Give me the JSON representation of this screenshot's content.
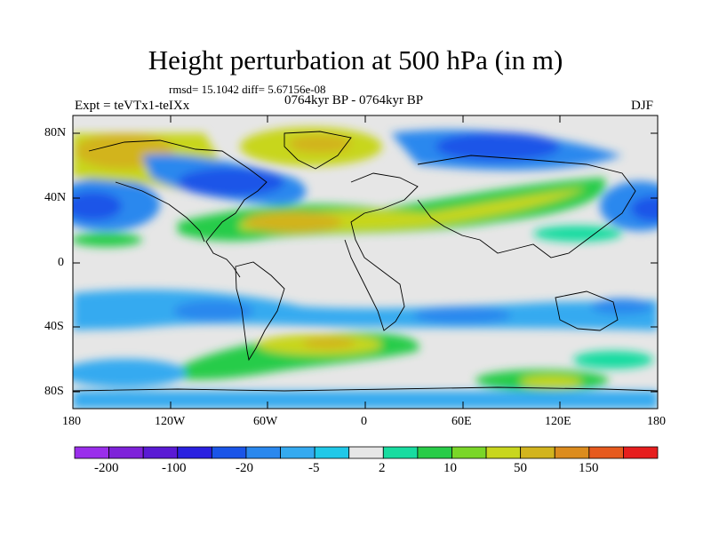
{
  "title": "Height perturbation at 500 hPa (in m)",
  "stats": "rmsd= 15.1042 diff= 5.67156e-08",
  "experiment": "Expt = teVTx1-teIXx",
  "period": "0764kyr BP - 0764kyr BP",
  "season": "DJF",
  "lat_ticks": [
    "80N",
    "40N",
    "0",
    "40S",
    "80S"
  ],
  "lon_ticks": [
    "180",
    "120W",
    "60W",
    "0",
    "60E",
    "120E",
    "180"
  ],
  "colorbar": {
    "colors": [
      "#9a2eeb",
      "#7e22d9",
      "#5a1ad4",
      "#2a20e0",
      "#1a55e8",
      "#2a88ee",
      "#35aaf0",
      "#20c8e8",
      "#e6e6e6",
      "#18dca0",
      "#28cc48",
      "#7ad628",
      "#c8d61e",
      "#d2b41e",
      "#dc8c1e",
      "#e65a1e",
      "#e61e1e"
    ],
    "labels": [
      "-200",
      "-100",
      "-20",
      "-5",
      "2",
      "10",
      "50",
      "150"
    ]
  }
}
